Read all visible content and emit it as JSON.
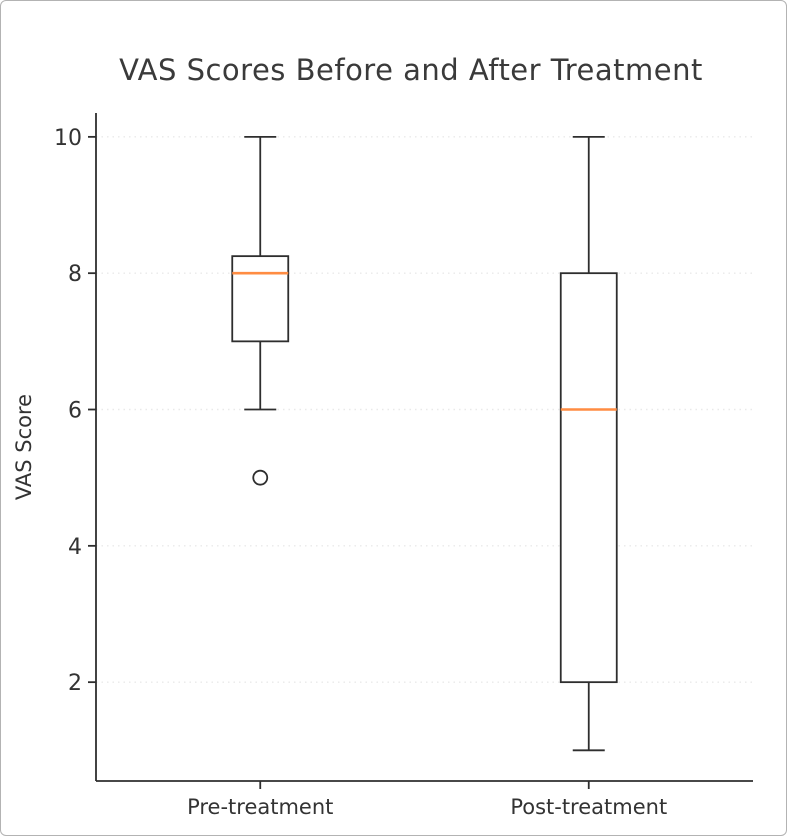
{
  "figure": {
    "background": "#ffffff",
    "border_color": "#b3b3b3"
  },
  "chart_data": {
    "type": "boxplot",
    "title": "VAS Scores Before and After Treatment",
    "xlabel": "",
    "ylabel": "VAS Score",
    "categories": [
      "Pre-treatment",
      "Post-treatment"
    ],
    "yticks": [
      2,
      4,
      6,
      8,
      10
    ],
    "ylim": [
      0.55,
      10.35
    ],
    "grid": {
      "horizontal": true,
      "style": "dotted",
      "color": "#e9e9e9"
    },
    "legend": "none",
    "colors": {
      "box_stroke": "#2e2e2e",
      "box_fill": "#ffffff",
      "median": "#ff8c42",
      "axis": "#2e2e2e",
      "text": "#333333",
      "title": "#3a3a3a"
    },
    "series": [
      {
        "name": "Pre-treatment",
        "whisker_low": 6,
        "q1": 7,
        "median": 8,
        "q3": 8.25,
        "whisker_high": 10,
        "outliers": [
          5
        ]
      },
      {
        "name": "Post-treatment",
        "whisker_low": 1,
        "q1": 2,
        "median": 6,
        "q3": 8,
        "whisker_high": 10,
        "outliers": []
      }
    ]
  }
}
